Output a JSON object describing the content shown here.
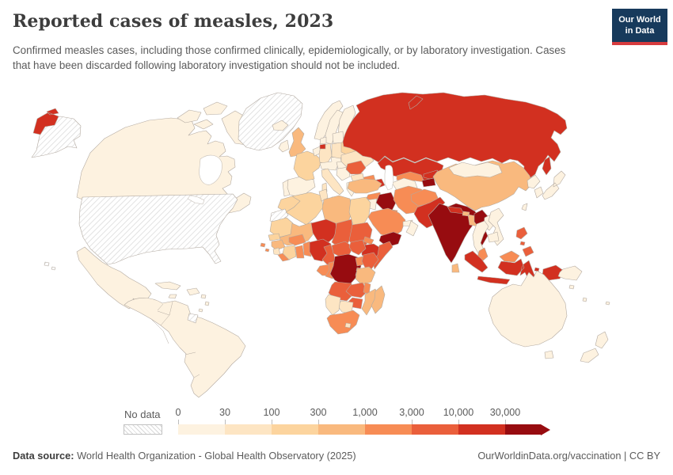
{
  "header": {
    "title": "Reported cases of measles, 2023",
    "subtitle": "Confirmed measles cases, including those confirmed clinically, epidemiologically, or by laboratory investigation. Cases that have been discarded following laboratory investigation should not be included.",
    "logo": {
      "line1": "Our World",
      "line2": "in Data"
    }
  },
  "legend": {
    "no_data_label": "No data"
  },
  "footer": {
    "source_label": "Data source:",
    "source_text": " World Health Organization - Global Health Observatory (2025)",
    "link": "OurWorldinData.org/vaccination",
    "separator": " | ",
    "license": "CC BY"
  },
  "chart_data": {
    "type": "heatmap",
    "subtype": "choropleth-world-map",
    "title": "Reported cases of measles, 2023",
    "unit": "reported measles cases",
    "year": "2023",
    "legend_position": "bottom",
    "bin_edges": [
      "0",
      "30",
      "100",
      "300",
      "1,000",
      "3,000",
      "10,000",
      "30,000"
    ],
    "bin_ranges": [
      "0-30",
      "30-100",
      "100-300",
      "300-1,000",
      "1,000-3,000",
      "3,000-10,000",
      "10,000-30,000",
      "30,000+"
    ],
    "bin_colors": [
      "#fdf2e0",
      "#fde5c3",
      "#fcd49e",
      "#f9b97e",
      "#f78c55",
      "#ea5f3b",
      "#d23020",
      "#970c10"
    ],
    "no_data_label": "No data",
    "no_data_pattern": "diagonal-hatch",
    "regions": {
      "usa": 0,
      "hawaii": 0,
      "greenland": 0,
      "western-sahara": 0,
      "french-guiana": 0,
      "canada": 1,
      "canada-arctic": 1,
      "mexico": 1,
      "central-america": 1,
      "cuba": 1,
      "hispaniola": 1,
      "jamaica": 1,
      "caribbean-islands": 1,
      "south-america": 1,
      "iceland": 1,
      "ireland": 1,
      "norway": 1,
      "sweden": 1,
      "finland": 1,
      "denmark": 1,
      "portugal": 1,
      "spain": 1,
      "greece": 1,
      "balkans": 1,
      "hungary": 1,
      "central-europe": 1,
      "belgium-netherlands": 1,
      "baltics": 1,
      "mongolia": 1,
      "japan": 1,
      "north-korea": 1,
      "south-korea": 1,
      "taiwan": 1,
      "thailand": 1,
      "laos": 1,
      "vietnam": 1,
      "cambodia": 1,
      "turkmenistan": 1,
      "oman": 1,
      "uae": 1,
      "jordan-israel": 1,
      "australia": 1,
      "tasmania": 1,
      "new-zealand": 1,
      "png": 1,
      "pacific-islands": 1,
      "poland": 2,
      "ukraine": 2,
      "bulgaria": 2,
      "tunisia": 2,
      "namibia": 2,
      "botswana": 2,
      "germany": 2,
      "italy": 2,
      "sierra-leone": 2,
      "lesotho": 2,
      "france": 3,
      "belarus": 3,
      "morocco": 3,
      "algeria": 3,
      "egypt": 3,
      "mauritania": 3,
      "senegal": 3,
      "cote-divoire": 3,
      "uk": 4,
      "turkey": 4,
      "china": 4,
      "libya": 4,
      "mali": 4,
      "guinea": 4,
      "tanzania": 4,
      "mozambique": 4,
      "madagascar": 4,
      "bangladesh": 4,
      "sri-lanka": 4,
      "bhutan": 4,
      "iran": 5,
      "saudi-arabia": 5,
      "kuwait": 5,
      "syria": 5,
      "afghanistan": 5,
      "uzbekistan": 5,
      "georgia": 5,
      "armenia": 5,
      "burkina-faso": 5,
      "ghana": 5,
      "togo-benin": 5,
      "liberia": 5,
      "gabon": 5,
      "congo": 5,
      "uganda": 5,
      "rwanda-burundi": 5,
      "malawi": 5,
      "eritrea": 5,
      "djibouti": 5,
      "south-africa": 5,
      "malaysia": 5,
      "cape-verde": 5,
      "romania": 6,
      "sudan": 6,
      "somalia": 6,
      "cameroon": 6,
      "central-african-republic": 6,
      "south-sudan": 6,
      "kenya": 6,
      "angola": 6,
      "zambia": 6,
      "zimbabwe": 6,
      "chad": 6,
      "philippines": 6,
      "russia": 7,
      "kaliningrad": 7,
      "kazakhstan": 7,
      "azerbaijan": 7,
      "kyrgyzstan": 7,
      "pakistan": 7,
      "nepal": 7,
      "niger": 7,
      "nigeria": 7,
      "ethiopia": 7,
      "indonesia": 7,
      "india": 8,
      "iraq": 8,
      "yemen": 8,
      "myanmar": 8,
      "drc": 8,
      "tajikistan": 8
    }
  }
}
